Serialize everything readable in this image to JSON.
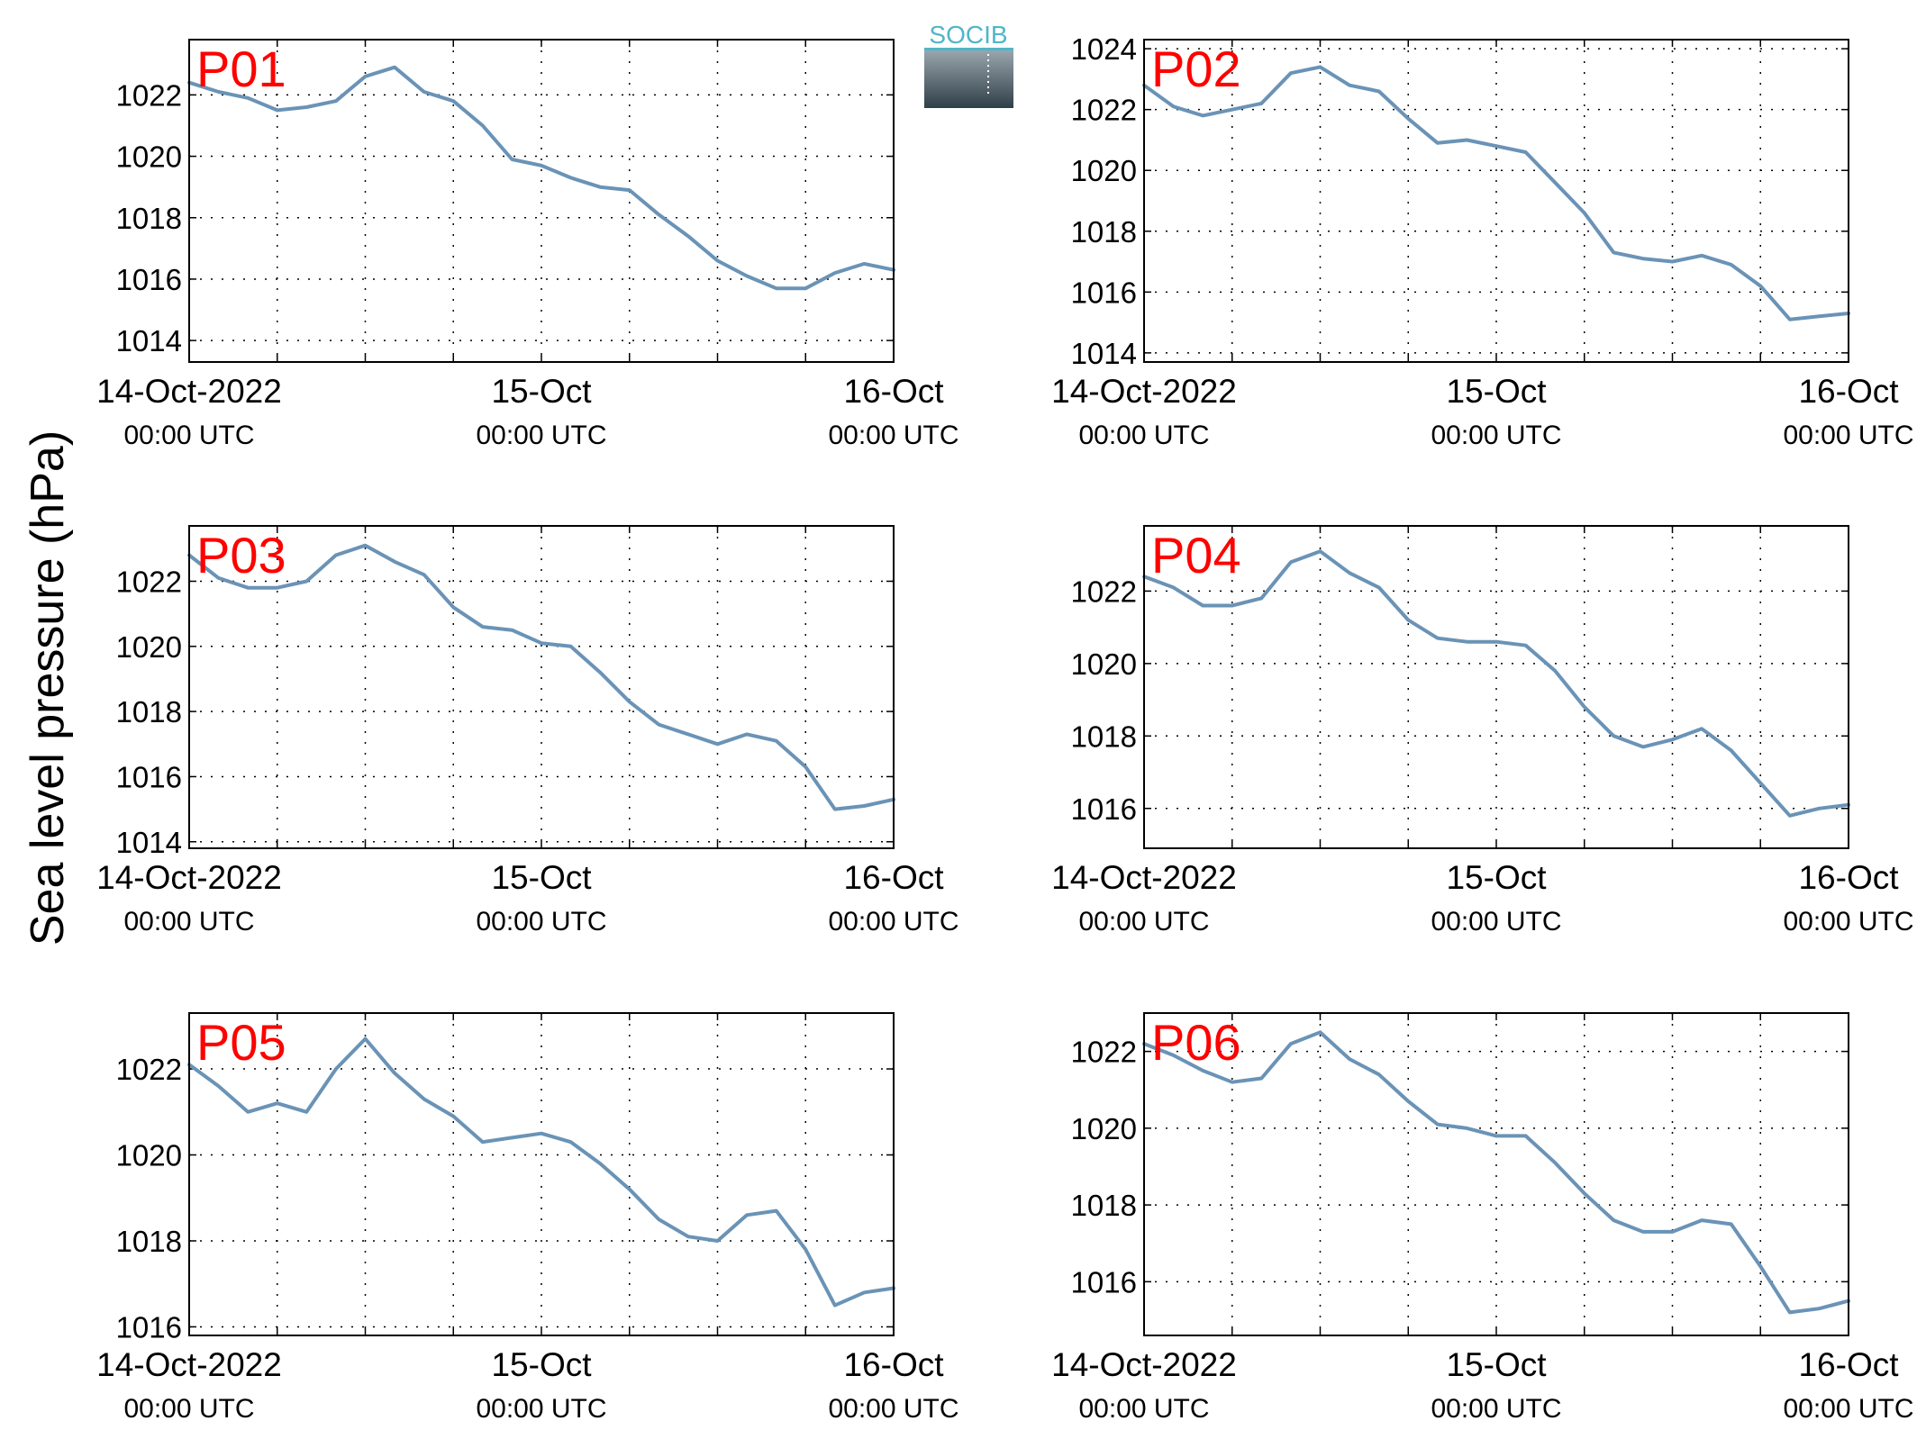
{
  "figure": {
    "ylabel": "Sea level pressure (hPa)",
    "logo_text": "SOCIB",
    "line_color": "#6a93b6",
    "tag_color": "#ff0000",
    "grid": true
  },
  "chart_data": [
    {
      "type": "line",
      "panel": "P01",
      "xticks": [
        {
          "top": "14-Oct-2022",
          "bottom": "00:00 UTC"
        },
        {
          "top": "15-Oct",
          "bottom": "00:00 UTC"
        },
        {
          "top": "16-Oct",
          "bottom": "00:00 UTC"
        }
      ],
      "ylim": [
        1013.3,
        1023.8
      ],
      "yticks": [
        1014,
        1016,
        1018,
        1020,
        1022
      ],
      "series": [
        {
          "x_hours": [
            0,
            2,
            4,
            6,
            8,
            10,
            12,
            14,
            16,
            18,
            20,
            22,
            24,
            26,
            28,
            30,
            32,
            34,
            36,
            38,
            40,
            42,
            44,
            46,
            48
          ],
          "y": [
            1022.4,
            1022.1,
            1021.9,
            1021.5,
            1021.6,
            1021.8,
            1022.6,
            1022.9,
            1022.1,
            1021.8,
            1021.0,
            1019.9,
            1019.7,
            1019.3,
            1019.0,
            1018.9,
            1018.1,
            1017.4,
            1016.6,
            1016.1,
            1015.7,
            1015.7,
            1016.2,
            1016.5,
            1016.3
          ]
        }
      ]
    },
    {
      "type": "line",
      "panel": "P02",
      "xticks": [
        {
          "top": "14-Oct-2022",
          "bottom": "00:00 UTC"
        },
        {
          "top": "15-Oct",
          "bottom": "00:00 UTC"
        },
        {
          "top": "16-Oct",
          "bottom": "00:00 UTC"
        }
      ],
      "ylim": [
        1013.7,
        1024.3
      ],
      "yticks": [
        1014,
        1016,
        1018,
        1020,
        1022,
        1024
      ],
      "series": [
        {
          "x_hours": [
            0,
            2,
            4,
            6,
            8,
            10,
            12,
            14,
            16,
            18,
            20,
            22,
            24,
            26,
            28,
            30,
            32,
            34,
            36,
            38,
            40,
            42,
            44,
            46,
            48
          ],
          "y": [
            1022.8,
            1022.1,
            1021.8,
            1022.0,
            1022.2,
            1023.2,
            1023.4,
            1022.8,
            1022.6,
            1021.7,
            1020.9,
            1021.0,
            1020.8,
            1020.6,
            1019.6,
            1018.6,
            1017.3,
            1017.1,
            1017.0,
            1017.2,
            1016.9,
            1016.2,
            1015.1,
            1015.2,
            1015.3
          ]
        }
      ]
    },
    {
      "type": "line",
      "panel": "P03",
      "xticks": [
        {
          "top": "14-Oct-2022",
          "bottom": "00:00 UTC"
        },
        {
          "top": "15-Oct",
          "bottom": "00:00 UTC"
        },
        {
          "top": "16-Oct",
          "bottom": "00:00 UTC"
        }
      ],
      "ylim": [
        1013.8,
        1023.7
      ],
      "yticks": [
        1014,
        1016,
        1018,
        1020,
        1022
      ],
      "series": [
        {
          "x_hours": [
            0,
            2,
            4,
            6,
            8,
            10,
            12,
            14,
            16,
            18,
            20,
            22,
            24,
            26,
            28,
            30,
            32,
            34,
            36,
            38,
            40,
            42,
            44,
            46,
            48
          ],
          "y": [
            1022.8,
            1022.1,
            1021.8,
            1021.8,
            1022.0,
            1022.8,
            1023.1,
            1022.6,
            1022.2,
            1021.2,
            1020.6,
            1020.5,
            1020.1,
            1020.0,
            1019.2,
            1018.3,
            1017.6,
            1017.3,
            1017.0,
            1017.3,
            1017.1,
            1016.3,
            1015.0,
            1015.1,
            1015.3
          ]
        }
      ]
    },
    {
      "type": "line",
      "panel": "P04",
      "xticks": [
        {
          "top": "14-Oct-2022",
          "bottom": "00:00 UTC"
        },
        {
          "top": "15-Oct",
          "bottom": "00:00 UTC"
        },
        {
          "top": "16-Oct",
          "bottom": "00:00 UTC"
        }
      ],
      "ylim": [
        1014.9,
        1023.8
      ],
      "yticks": [
        1016,
        1018,
        1020,
        1022
      ],
      "series": [
        {
          "x_hours": [
            0,
            2,
            4,
            6,
            8,
            10,
            12,
            14,
            16,
            18,
            20,
            22,
            24,
            26,
            28,
            30,
            32,
            34,
            36,
            38,
            40,
            42,
            44,
            46,
            48
          ],
          "y": [
            1022.4,
            1022.1,
            1021.6,
            1021.6,
            1021.8,
            1022.8,
            1023.1,
            1022.5,
            1022.1,
            1021.2,
            1020.7,
            1020.6,
            1020.6,
            1020.5,
            1019.8,
            1018.8,
            1018.0,
            1017.7,
            1017.9,
            1018.2,
            1017.6,
            1016.7,
            1015.8,
            1016.0,
            1016.1
          ]
        }
      ]
    },
    {
      "type": "line",
      "panel": "P05",
      "xticks": [
        {
          "top": "14-Oct-2022",
          "bottom": "00:00 UTC"
        },
        {
          "top": "15-Oct",
          "bottom": "00:00 UTC"
        },
        {
          "top": "16-Oct",
          "bottom": "00:00 UTC"
        }
      ],
      "ylim": [
        1015.8,
        1023.3
      ],
      "yticks": [
        1016,
        1018,
        1020,
        1022
      ],
      "series": [
        {
          "x_hours": [
            0,
            2,
            4,
            6,
            8,
            10,
            12,
            14,
            16,
            18,
            20,
            22,
            24,
            26,
            28,
            30,
            32,
            34,
            36,
            38,
            40,
            42,
            44,
            46,
            48
          ],
          "y": [
            1022.1,
            1021.6,
            1021.0,
            1021.2,
            1021.0,
            1022.0,
            1022.7,
            1021.9,
            1021.3,
            1020.9,
            1020.3,
            1020.4,
            1020.5,
            1020.3,
            1019.8,
            1019.2,
            1018.5,
            1018.1,
            1018.0,
            1018.6,
            1018.7,
            1017.8,
            1016.5,
            1016.8,
            1016.9
          ]
        }
      ]
    },
    {
      "type": "line",
      "panel": "P06",
      "xticks": [
        {
          "top": "14-Oct-2022",
          "bottom": "00:00 UTC"
        },
        {
          "top": "15-Oct",
          "bottom": "00:00 UTC"
        },
        {
          "top": "16-Oct",
          "bottom": "00:00 UTC"
        }
      ],
      "ylim": [
        1014.6,
        1023.0
      ],
      "yticks": [
        1016,
        1018,
        1020,
        1022
      ],
      "series": [
        {
          "x_hours": [
            0,
            2,
            4,
            6,
            8,
            10,
            12,
            14,
            16,
            18,
            20,
            22,
            24,
            26,
            28,
            30,
            32,
            34,
            36,
            38,
            40,
            42,
            44,
            46,
            48
          ],
          "y": [
            1022.2,
            1021.9,
            1021.5,
            1021.2,
            1021.3,
            1022.2,
            1022.5,
            1021.8,
            1021.4,
            1020.7,
            1020.1,
            1020.0,
            1019.8,
            1019.8,
            1019.1,
            1018.3,
            1017.6,
            1017.3,
            1017.3,
            1017.6,
            1017.5,
            1016.4,
            1015.2,
            1015.3,
            1015.5
          ]
        }
      ]
    }
  ]
}
